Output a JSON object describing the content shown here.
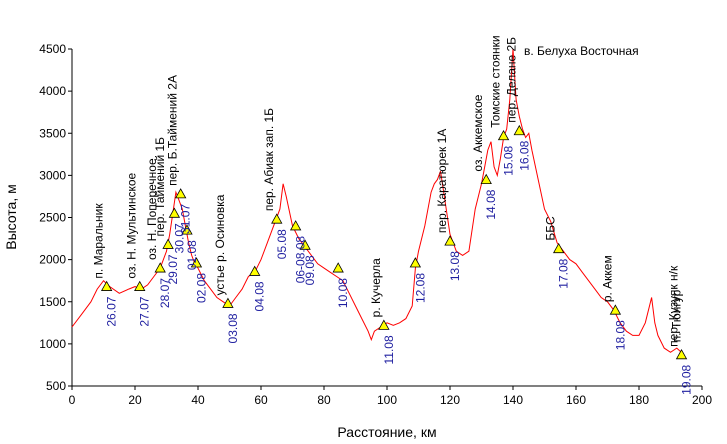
{
  "chart_data": {
    "type": "line",
    "title": "",
    "xlabel": "Расстояние, км",
    "ylabel": "Высота, м",
    "xlim": [
      0,
      200
    ],
    "ylim": [
      500,
      4500
    ],
    "xticks": [
      0,
      20,
      40,
      60,
      80,
      100,
      120,
      140,
      160,
      180,
      200
    ],
    "yticks": [
      500,
      1000,
      1500,
      2000,
      2500,
      3000,
      3500,
      4000,
      4500
    ],
    "grid": false,
    "series_color": "#ff0000",
    "marker_color": "#ffff00",
    "profile": {
      "x": [
        0,
        3,
        6,
        8,
        10,
        12,
        15,
        18,
        20,
        22,
        24,
        26,
        28,
        30,
        31,
        32,
        33,
        34,
        35,
        36,
        37,
        38,
        39,
        40,
        42,
        44,
        46,
        48,
        50,
        52,
        54,
        56,
        58,
        60,
        62,
        64,
        66,
        67,
        68,
        70,
        72,
        74,
        76,
        78,
        80,
        82,
        84,
        86,
        88,
        90,
        92,
        94,
        95,
        96,
        98,
        100,
        102,
        104,
        106,
        108,
        109,
        110,
        112,
        114,
        115,
        116,
        117,
        118,
        120,
        122,
        124,
        126,
        128,
        130,
        131,
        132,
        133,
        134,
        135,
        136,
        137,
        138,
        139,
        140,
        141,
        142,
        143,
        144,
        145,
        146,
        148,
        150,
        152,
        154,
        156,
        158,
        160,
        162,
        164,
        166,
        168,
        170,
        172,
        174,
        176,
        178,
        180,
        182,
        184,
        185,
        186,
        188,
        190,
        192,
        194
      ],
      "y": [
        1200,
        1350,
        1500,
        1650,
        1750,
        1680,
        1600,
        1650,
        1680,
        1650,
        1700,
        1800,
        1900,
        2100,
        2300,
        2550,
        2800,
        2700,
        2600,
        2400,
        2200,
        2050,
        1950,
        1900,
        1750,
        1650,
        1550,
        1500,
        1450,
        1550,
        1650,
        1800,
        1850,
        2000,
        2200,
        2400,
        2600,
        2900,
        2750,
        2400,
        2250,
        2150,
        2050,
        1950,
        1900,
        1850,
        1800,
        1750,
        1600,
        1450,
        1300,
        1150,
        1050,
        1150,
        1200,
        1250,
        1220,
        1250,
        1300,
        1450,
        1900,
        2100,
        2400,
        2800,
        2900,
        2950,
        3050,
        2800,
        2300,
        2100,
        2050,
        2100,
        2600,
        2900,
        3100,
        3300,
        3400,
        3100,
        3000,
        3200,
        3450,
        3550,
        3900,
        4500,
        3900,
        3700,
        3550,
        3450,
        3500,
        3300,
        2950,
        2600,
        2450,
        2200,
        2100,
        2000,
        1950,
        1850,
        1750,
        1650,
        1550,
        1500,
        1400,
        1250,
        1150,
        1100,
        1100,
        1250,
        1550,
        1250,
        1100,
        950,
        900,
        950,
        880
      ]
    },
    "points": [
      {
        "x": 11,
        "y": 1680,
        "name": "п. Маральник",
        "date": "26.07"
      },
      {
        "x": 21.5,
        "y": 1680,
        "name": "оз. Н. Мультинское",
        "date": "27.07"
      },
      {
        "x": 28,
        "y": 1900,
        "name": "оз. Н. Поперечное",
        "date": "28.07"
      },
      {
        "x": 30.5,
        "y": 2180,
        "name": "пер. Таймений 1Б",
        "date": "29.07"
      },
      {
        "x": 32.5,
        "y": 2550,
        "name": "",
        "date": "30.07"
      },
      {
        "x": 34.5,
        "y": 2780,
        "name": "пер. Б.Таймений 2А",
        "date": "31.07"
      },
      {
        "x": 36.5,
        "y": 2350,
        "name": "",
        "date": "01.08"
      },
      {
        "x": 39.5,
        "y": 1960,
        "name": "",
        "date": "02.08"
      },
      {
        "x": 49.5,
        "y": 1480,
        "name": "устье р. Осиновка",
        "date": "03.08"
      },
      {
        "x": 58,
        "y": 1860,
        "name": "",
        "date": "04.08"
      },
      {
        "x": 65,
        "y": 2480,
        "name": "пер. Абиак зап. 1Б",
        "date": "05.08"
      },
      {
        "x": 71,
        "y": 2400,
        "name": "",
        "date": "06-08.08"
      },
      {
        "x": 74,
        "y": 2170,
        "name": "",
        "date": "09.08"
      },
      {
        "x": 84.5,
        "y": 1900,
        "name": "",
        "date": "10.08"
      },
      {
        "x": 99,
        "y": 1220,
        "name": "р. Кучерла",
        "date": "11.08"
      },
      {
        "x": 109,
        "y": 1960,
        "name": "",
        "date": "12.08"
      },
      {
        "x": 120,
        "y": 2220,
        "name": "пер. Каратюрек 1А",
        "date": "13.08"
      },
      {
        "x": 131.5,
        "y": 2950,
        "name": "оз. Аккемское",
        "date": "14.08"
      },
      {
        "x": 137,
        "y": 3470,
        "name": "Томские стоянки",
        "date": "15.08"
      },
      {
        "x": 142,
        "y": 3530,
        "name": "пер. Делане 2Б",
        "date": "16.08"
      },
      {
        "x": 154.5,
        "y": 2130,
        "name": "ББС",
        "date": "17.08"
      },
      {
        "x": 172.5,
        "y": 1400,
        "name": "р. Аккем",
        "date": "18.08"
      },
      {
        "x": 193.5,
        "y": 870,
        "name": "пер. Кузуяк н/к",
        "date": "19.08"
      }
    ],
    "extra_labels": [
      {
        "text": "в. Белуха Восточная"
      },
      {
        "text": "п. Тюнгур"
      }
    ]
  }
}
